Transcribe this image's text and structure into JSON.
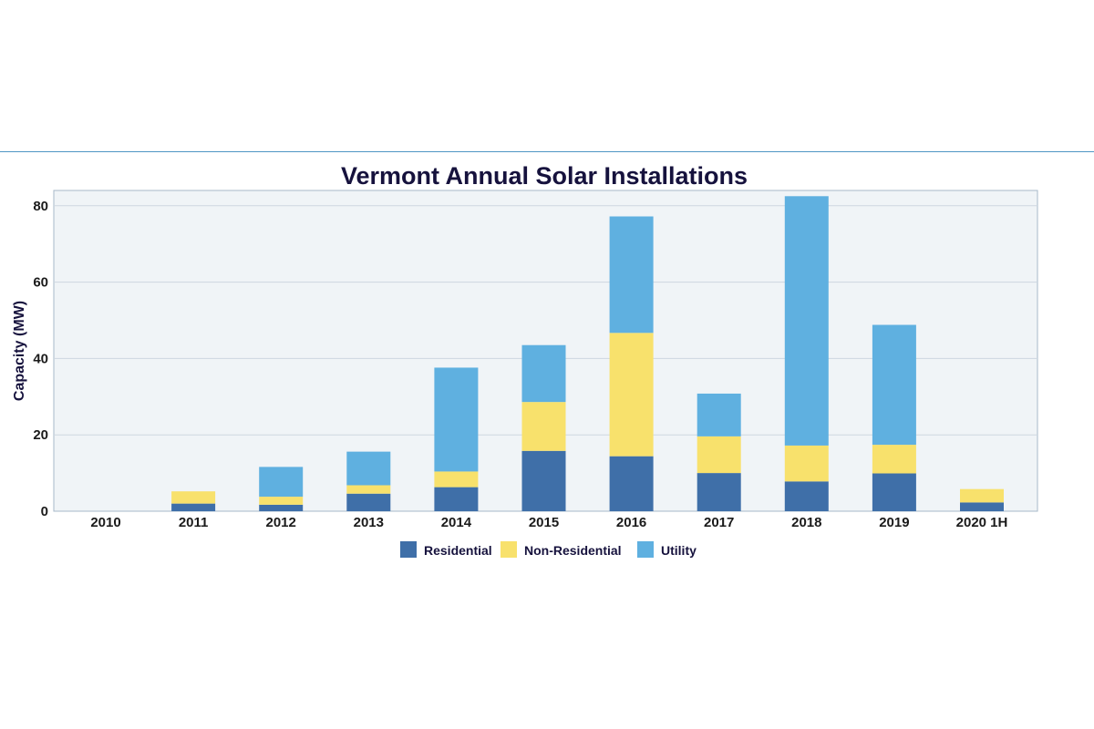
{
  "chart_data": {
    "type": "bar",
    "stacked": true,
    "title": "Vermont Annual Solar Installations",
    "xlabel": "",
    "ylabel": "Capacity (MW)",
    "ylim": [
      0,
      84
    ],
    "yticks": [
      0,
      20,
      40,
      60,
      80
    ],
    "grid": true,
    "legend_position": "bottom-center",
    "categories": [
      "2010",
      "2011",
      "2012",
      "2013",
      "2014",
      "2015",
      "2016",
      "2017",
      "2018",
      "2019",
      "2020 1H"
    ],
    "series": [
      {
        "name": "Residential",
        "color": "#3f6fa8",
        "values": [
          0,
          2.0,
          1.7,
          4.6,
          6.3,
          15.8,
          14.4,
          10.0,
          7.8,
          9.9,
          2.3
        ]
      },
      {
        "name": "Non-Residential",
        "color": "#f8e16c",
        "values": [
          0,
          3.2,
          2.1,
          2.2,
          4.1,
          12.8,
          32.3,
          9.6,
          9.4,
          7.5,
          3.5
        ]
      },
      {
        "name": "Utility",
        "color": "#5fb0e0",
        "values": [
          0,
          0,
          7.8,
          8.8,
          27.2,
          14.9,
          30.5,
          11.2,
          65.3,
          31.4,
          0
        ]
      }
    ],
    "colors": {
      "plot_background": "#f0f4f7",
      "plot_border": "#a7b8c8",
      "gridline": "#cdd7e0",
      "title": "#16123d"
    }
  }
}
